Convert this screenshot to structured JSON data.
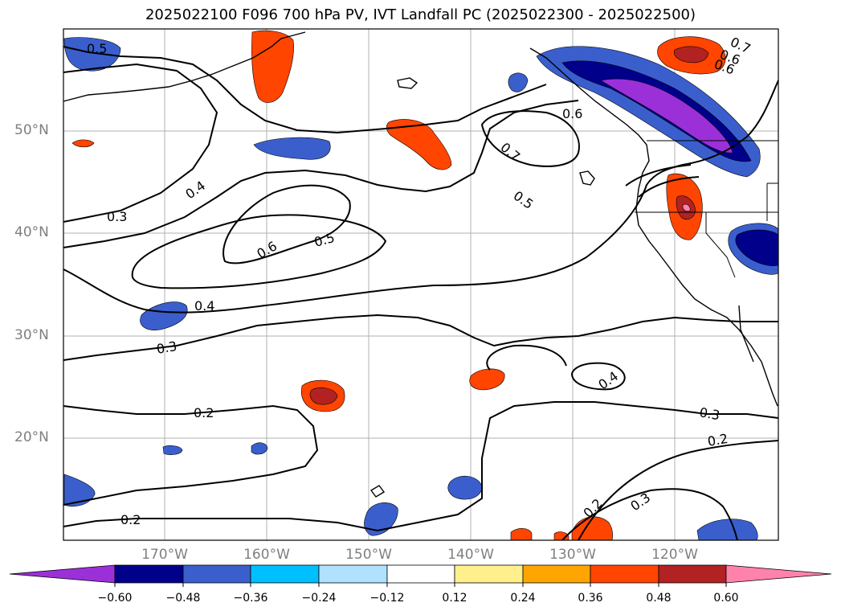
{
  "title": "2025022100 F096 700 hPa PV, IVT Landfall PC (2025022300 - 2025022500)",
  "latitude_labels": [
    "50°N",
    "40°N",
    "30°N",
    "20°N"
  ],
  "longitude_labels": [
    "170°W",
    "160°W",
    "150°W",
    "140°W",
    "130°W",
    "120°W"
  ],
  "contour_labels": [
    "0.5",
    "0.4",
    "0.3",
    "0.6",
    "0.5",
    "0.4",
    "0.3",
    "0.2",
    "0.2",
    "0.7",
    "0.5",
    "0.6",
    "0.7",
    "0.6",
    "0.4",
    "0.3",
    "0.2",
    "0.2",
    "0.3",
    "0.6"
  ],
  "colorbar": {
    "ticks": [
      "−0.60",
      "−0.48",
      "−0.36",
      "−0.24",
      "−0.12",
      "0.12",
      "0.24",
      "0.36",
      "0.48",
      "0.60"
    ],
    "colors": [
      "#9b30d9",
      "#00008b",
      "#3a5fcd",
      "#00bfff",
      "#b0e2ff",
      "#ffffff",
      "#fff08c",
      "#ffa500",
      "#ff4500",
      "#b22222",
      "#ff82ab"
    ]
  }
}
